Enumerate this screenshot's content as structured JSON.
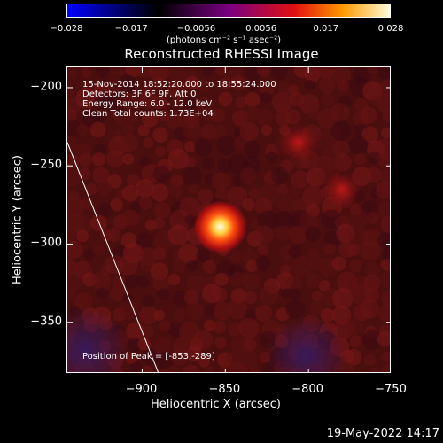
{
  "colorbar": {
    "ticks": [
      "−0.028",
      "−0.017",
      "−0.0056",
      "0.0056",
      "0.017",
      "0.028"
    ],
    "unit": "(photons cm⁻² s⁻¹ asec⁻²)",
    "colors": [
      "#0000ff",
      "#000000",
      "#7a0080",
      "#e01010",
      "#ff9900",
      "#ffffe0"
    ]
  },
  "chart_data": {
    "type": "heatmap",
    "title": "Reconstructed RHESSI Image",
    "xlabel": "Heliocentric X (arcsec)",
    "ylabel": "Heliocentric Y (arcsec)",
    "xlim": [
      -945,
      -750
    ],
    "ylim": [
      -383,
      -187
    ],
    "x_ticks": [
      "−900",
      "−850",
      "−800",
      "−750"
    ],
    "x_tick_values": [
      -900,
      -850,
      -800,
      -750
    ],
    "y_ticks": [
      "−200",
      "−250",
      "−300",
      "−350"
    ],
    "y_tick_values": [
      -200,
      -250,
      -300,
      -350
    ],
    "annotations": [
      "15-Nov-2014 18:52:20.000 to 18:55:24.000",
      "Detectors: 3F 6F 9F, Att 0",
      "Energy Range: 6.0 - 12.0 keV",
      "Clean     Total counts: 1.73E+04"
    ],
    "peak_label": "Position of Peak = [-853,-289]",
    "peak": {
      "x": -853,
      "y": -289,
      "value": 0.028
    },
    "limb_line": [
      [
        -945,
        -235
      ],
      [
        -890,
        -383
      ]
    ],
    "secondary_sources": [
      {
        "x": -806,
        "y": -235,
        "value": 0.012
      },
      {
        "x": -780,
        "y": -265,
        "value": 0.008
      }
    ]
  },
  "footer": {
    "timestamp": "19-May-2022 14:17"
  }
}
